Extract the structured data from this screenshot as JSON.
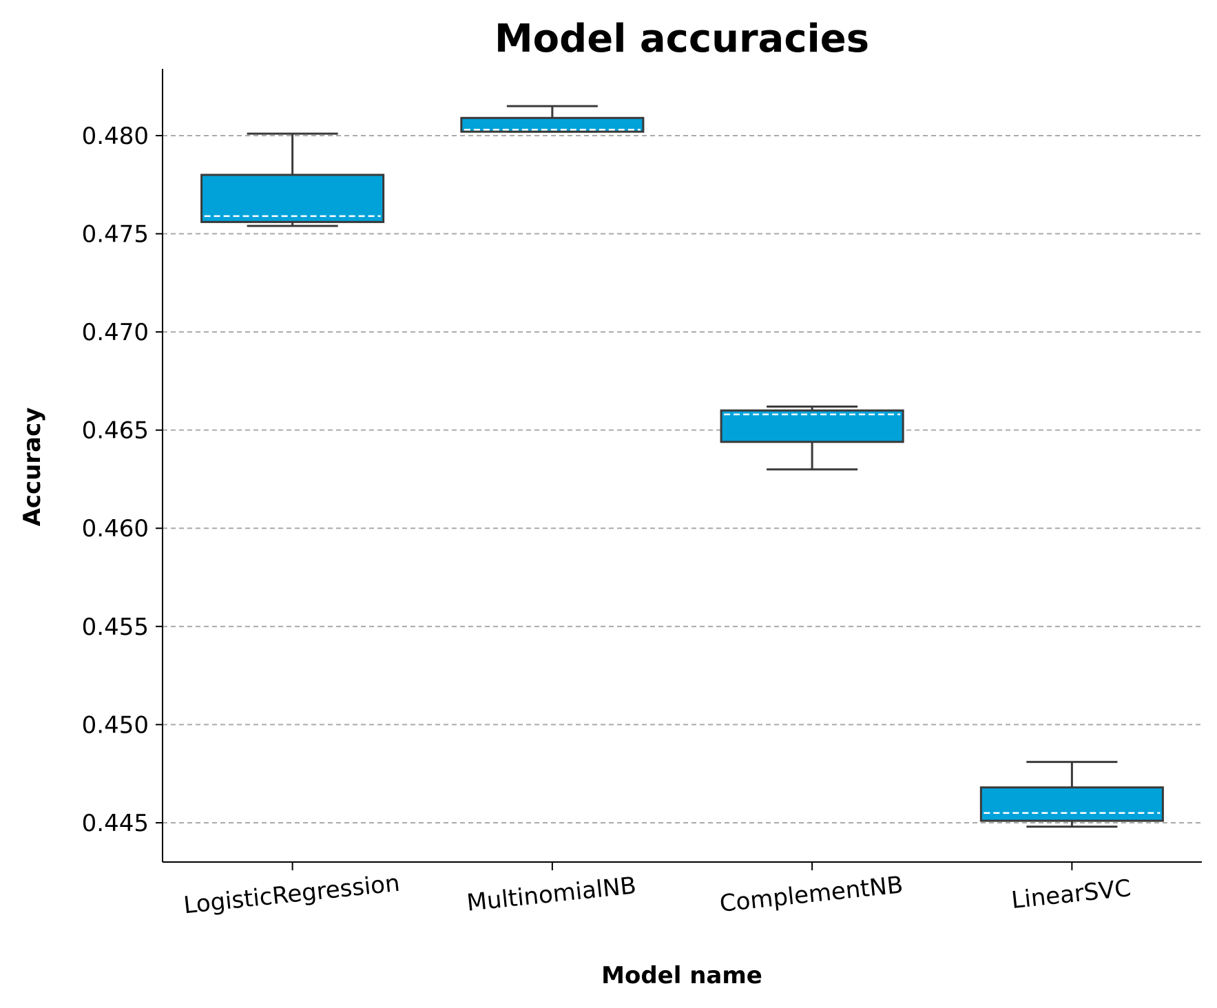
{
  "chart_data": {
    "type": "box",
    "title": "Model accuracies",
    "xlabel": "Model name",
    "ylabel": "Accuracy",
    "ylim": [
      0.443,
      0.4834
    ],
    "yticks": [
      0.445,
      0.45,
      0.455,
      0.46,
      0.465,
      0.47,
      0.475,
      0.48
    ],
    "ytick_labels": [
      "0.445",
      "0.450",
      "0.455",
      "0.460",
      "0.465",
      "0.470",
      "0.475",
      "0.480"
    ],
    "grid": "y-dashed",
    "box_color": "#00a2d9",
    "categories": [
      "LogisticRegression",
      "MultinomialNB",
      "ComplementNB",
      "LinearSVC"
    ],
    "boxes": [
      {
        "name": "LogisticRegression",
        "whisker_low": 0.4754,
        "q1": 0.4756,
        "median": 0.4759,
        "q3": 0.478,
        "whisker_high": 0.4801
      },
      {
        "name": "MultinomialNB",
        "whisker_low": 0.4802,
        "q1": 0.4802,
        "median": 0.4803,
        "q3": 0.4809,
        "whisker_high": 0.4815
      },
      {
        "name": "ComplementNB",
        "whisker_low": 0.463,
        "q1": 0.4644,
        "median": 0.4658,
        "q3": 0.466,
        "whisker_high": 0.4662
      },
      {
        "name": "LinearSVC",
        "whisker_low": 0.4448,
        "q1": 0.4451,
        "median": 0.4455,
        "q3": 0.4468,
        "whisker_high": 0.4481
      }
    ]
  }
}
